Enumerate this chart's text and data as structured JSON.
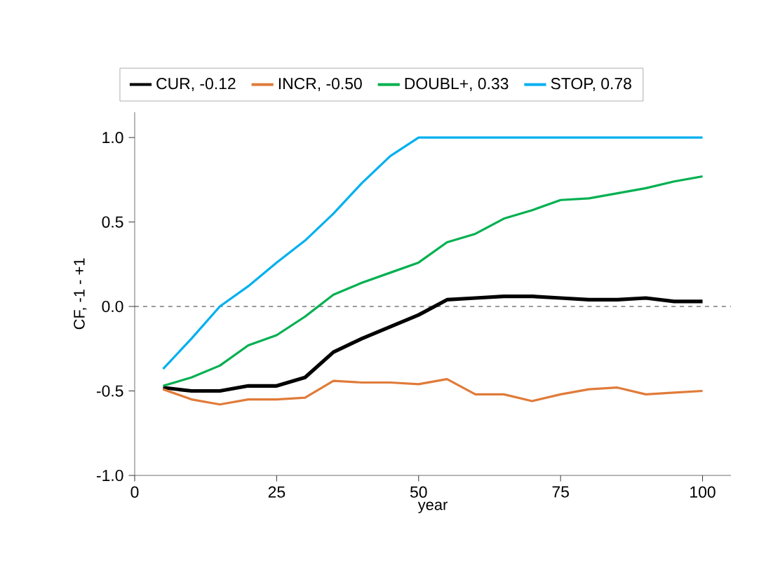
{
  "chart_data": {
    "type": "line",
    "xlabel": "year",
    "ylabel": "CF, -1 - +1",
    "x": [
      5,
      10,
      15,
      20,
      25,
      30,
      35,
      40,
      45,
      50,
      55,
      60,
      65,
      70,
      75,
      80,
      85,
      90,
      95,
      100
    ],
    "series": [
      {
        "name": "CUR, -0.12",
        "color": "#000000",
        "values": [
          -0.48,
          -0.5,
          -0.5,
          -0.47,
          -0.47,
          -0.42,
          -0.27,
          -0.19,
          -0.12,
          -0.05,
          0.04,
          0.05,
          0.06,
          0.06,
          0.05,
          0.04,
          0.04,
          0.05,
          0.03,
          0.03
        ]
      },
      {
        "name": "INCR, -0.50",
        "color": "#e07b39",
        "values": [
          -0.49,
          -0.55,
          -0.58,
          -0.55,
          -0.55,
          -0.54,
          -0.44,
          -0.45,
          -0.45,
          -0.46,
          -0.43,
          -0.52,
          -0.52,
          -0.56,
          -0.52,
          -0.49,
          -0.48,
          -0.52,
          -0.51,
          -0.5
        ]
      },
      {
        "name": "DOUBL+, 0.33",
        "color": "#00b050",
        "values": [
          -0.47,
          -0.42,
          -0.35,
          -0.23,
          -0.17,
          -0.06,
          0.07,
          0.14,
          0.2,
          0.26,
          0.38,
          0.43,
          0.52,
          0.57,
          0.63,
          0.64,
          0.67,
          0.7,
          0.74,
          0.77
        ]
      },
      {
        "name": "STOP, 0.78",
        "color": "#00b0f0",
        "values": [
          -0.37,
          -0.19,
          0.0,
          0.12,
          0.26,
          0.39,
          0.55,
          0.73,
          0.89,
          1.0,
          1.0,
          1.0,
          1.0,
          1.0,
          1.0,
          1.0,
          1.0,
          1.0,
          1.0,
          1.0
        ]
      }
    ],
    "xlim": [
      0,
      105
    ],
    "ylim": [
      -1,
      1.15
    ],
    "xticks": [
      0,
      25,
      50,
      75,
      100
    ],
    "yticks": [
      {
        "value": -1,
        "label": "-1.0"
      },
      {
        "value": -0.5,
        "label": "-0.5"
      },
      {
        "value": 0,
        "label": "0.0"
      },
      {
        "value": 0.5,
        "label": "0.5"
      },
      {
        "value": 1,
        "label": "1.0"
      }
    ],
    "ref_lines": [
      {
        "axis": "y",
        "value": 0,
        "color": "#000000",
        "line_style": "dashed"
      }
    ],
    "legend": "top",
    "grid": false,
    "marker": "none",
    "line_style": "solid"
  }
}
